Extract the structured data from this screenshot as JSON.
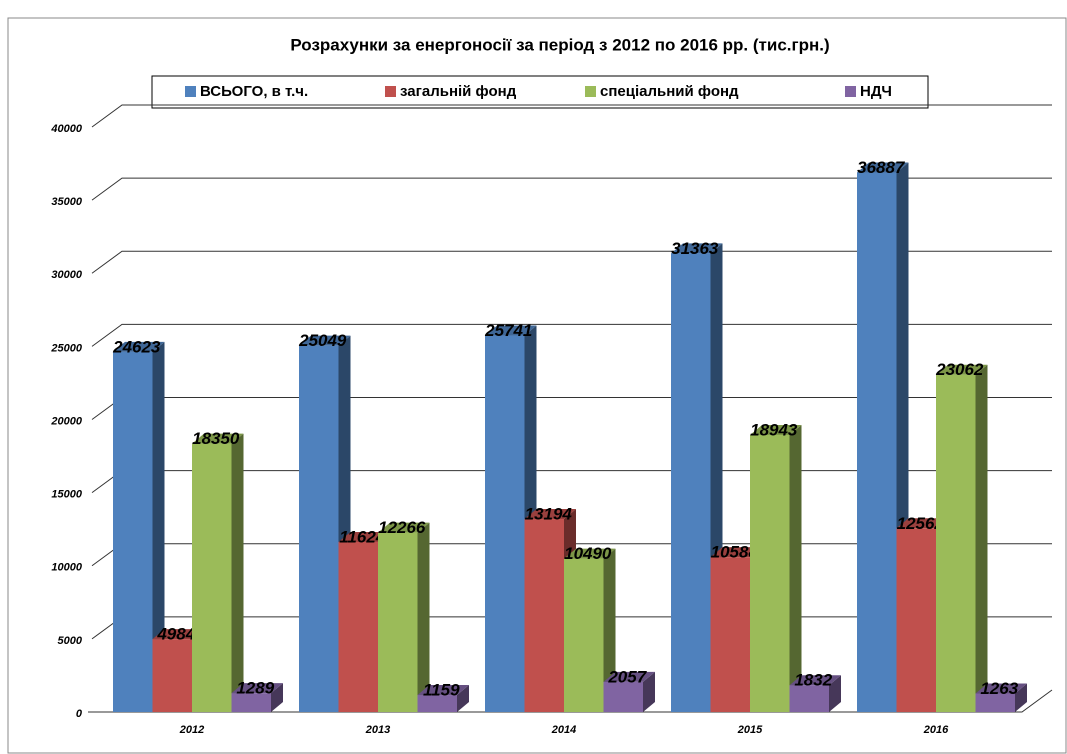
{
  "chart_data": {
    "type": "bar",
    "title": "Розрахунки за енергоносії за період з 2012 по 2016 рр. (тис.грн.)",
    "categories": [
      "2012",
      "2013",
      "2014",
      "2015",
      "2016"
    ],
    "series": [
      {
        "name": "ВСЬОГО, в т.ч.",
        "color": "#4f81bd",
        "values": [
          24623,
          25049,
          25741,
          31363,
          36887
        ]
      },
      {
        "name": "загальній фонд",
        "color": "#c0504d",
        "values": [
          4984,
          11624,
          13194,
          10588,
          12562
        ]
      },
      {
        "name": "спеціальний фонд",
        "color": "#9bbb59",
        "values": [
          18350,
          12266,
          10490,
          18943,
          23062
        ]
      },
      {
        "name": "НДЧ",
        "color": "#8064a2",
        "values": [
          1289,
          1159,
          2057,
          1832,
          1263
        ]
      }
    ],
    "ylim": [
      0,
      40000
    ],
    "yticks": [
      0,
      5000,
      10000,
      15000,
      20000,
      25000,
      30000,
      35000,
      40000
    ],
    "grid": true,
    "legend": "top"
  }
}
